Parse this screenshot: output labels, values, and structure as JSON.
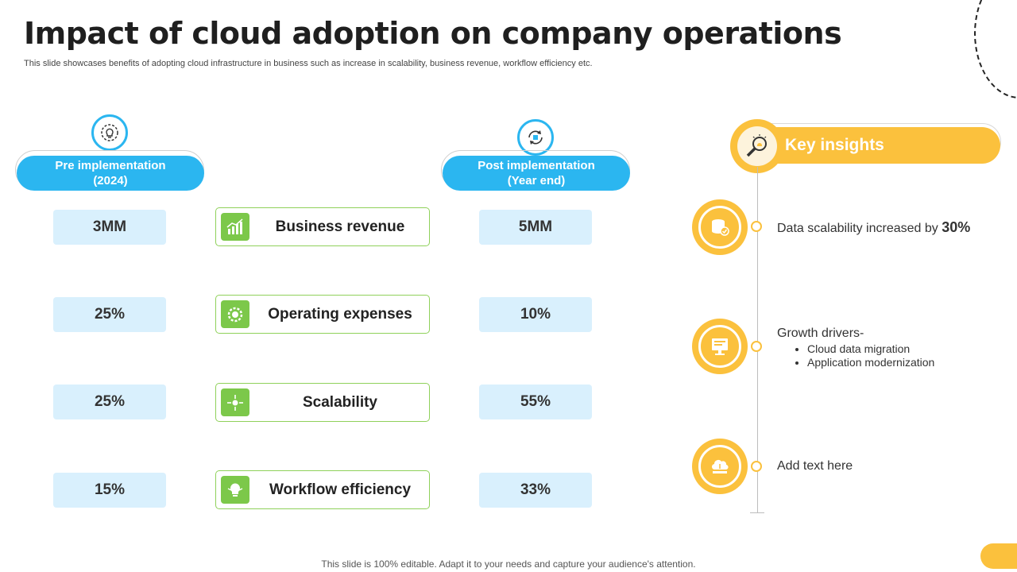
{
  "title": "Impact of cloud adoption on company operations",
  "subtitle": "This slide showcases benefits of adopting cloud infrastructure in business such as increase in scalability, business revenue, workflow efficiency etc.",
  "pre": {
    "line1": "Pre implementation",
    "line2": "(2024)",
    "icon": "lightbulb-gear-icon"
  },
  "post": {
    "line1": "Post implementation",
    "line2": "(Year end)",
    "icon": "cycle-arrows-icon"
  },
  "rows": [
    {
      "label": "Business revenue",
      "pre": "3MM",
      "post": "5MM",
      "icon": "revenue-chart-icon"
    },
    {
      "label": "Operating expenses",
      "pre": "25%",
      "post": "10%",
      "icon": "expense-gear-icon"
    },
    {
      "label": "Scalability",
      "pre": "25%",
      "post": "55%",
      "icon": "scalability-arrows-icon"
    },
    {
      "label": "Workflow efficiency",
      "pre": "15%",
      "post": "33%",
      "icon": "workflow-bulb-icon"
    }
  ],
  "insights": {
    "title": "Key insights",
    "icon": "magnifier-bulb-icon",
    "items": [
      {
        "text": "Data scalability increased by ",
        "highlight": "30%",
        "icon": "database-check-icon"
      },
      {
        "text": "Growth drivers-",
        "bullets": [
          "Cloud data migration",
          "Application modernization"
        ],
        "icon": "cloud-monitor-icon"
      },
      {
        "text": "Add text here",
        "icon": "cloud-laptop-icon"
      }
    ]
  },
  "footer": "This slide is 100% editable. Adapt it to your needs and capture your audience's attention.",
  "colors": {
    "blue": "#2bb6f0",
    "light_blue": "#d9f0fd",
    "green": "#7cc84a",
    "yellow": "#fbc13d"
  }
}
